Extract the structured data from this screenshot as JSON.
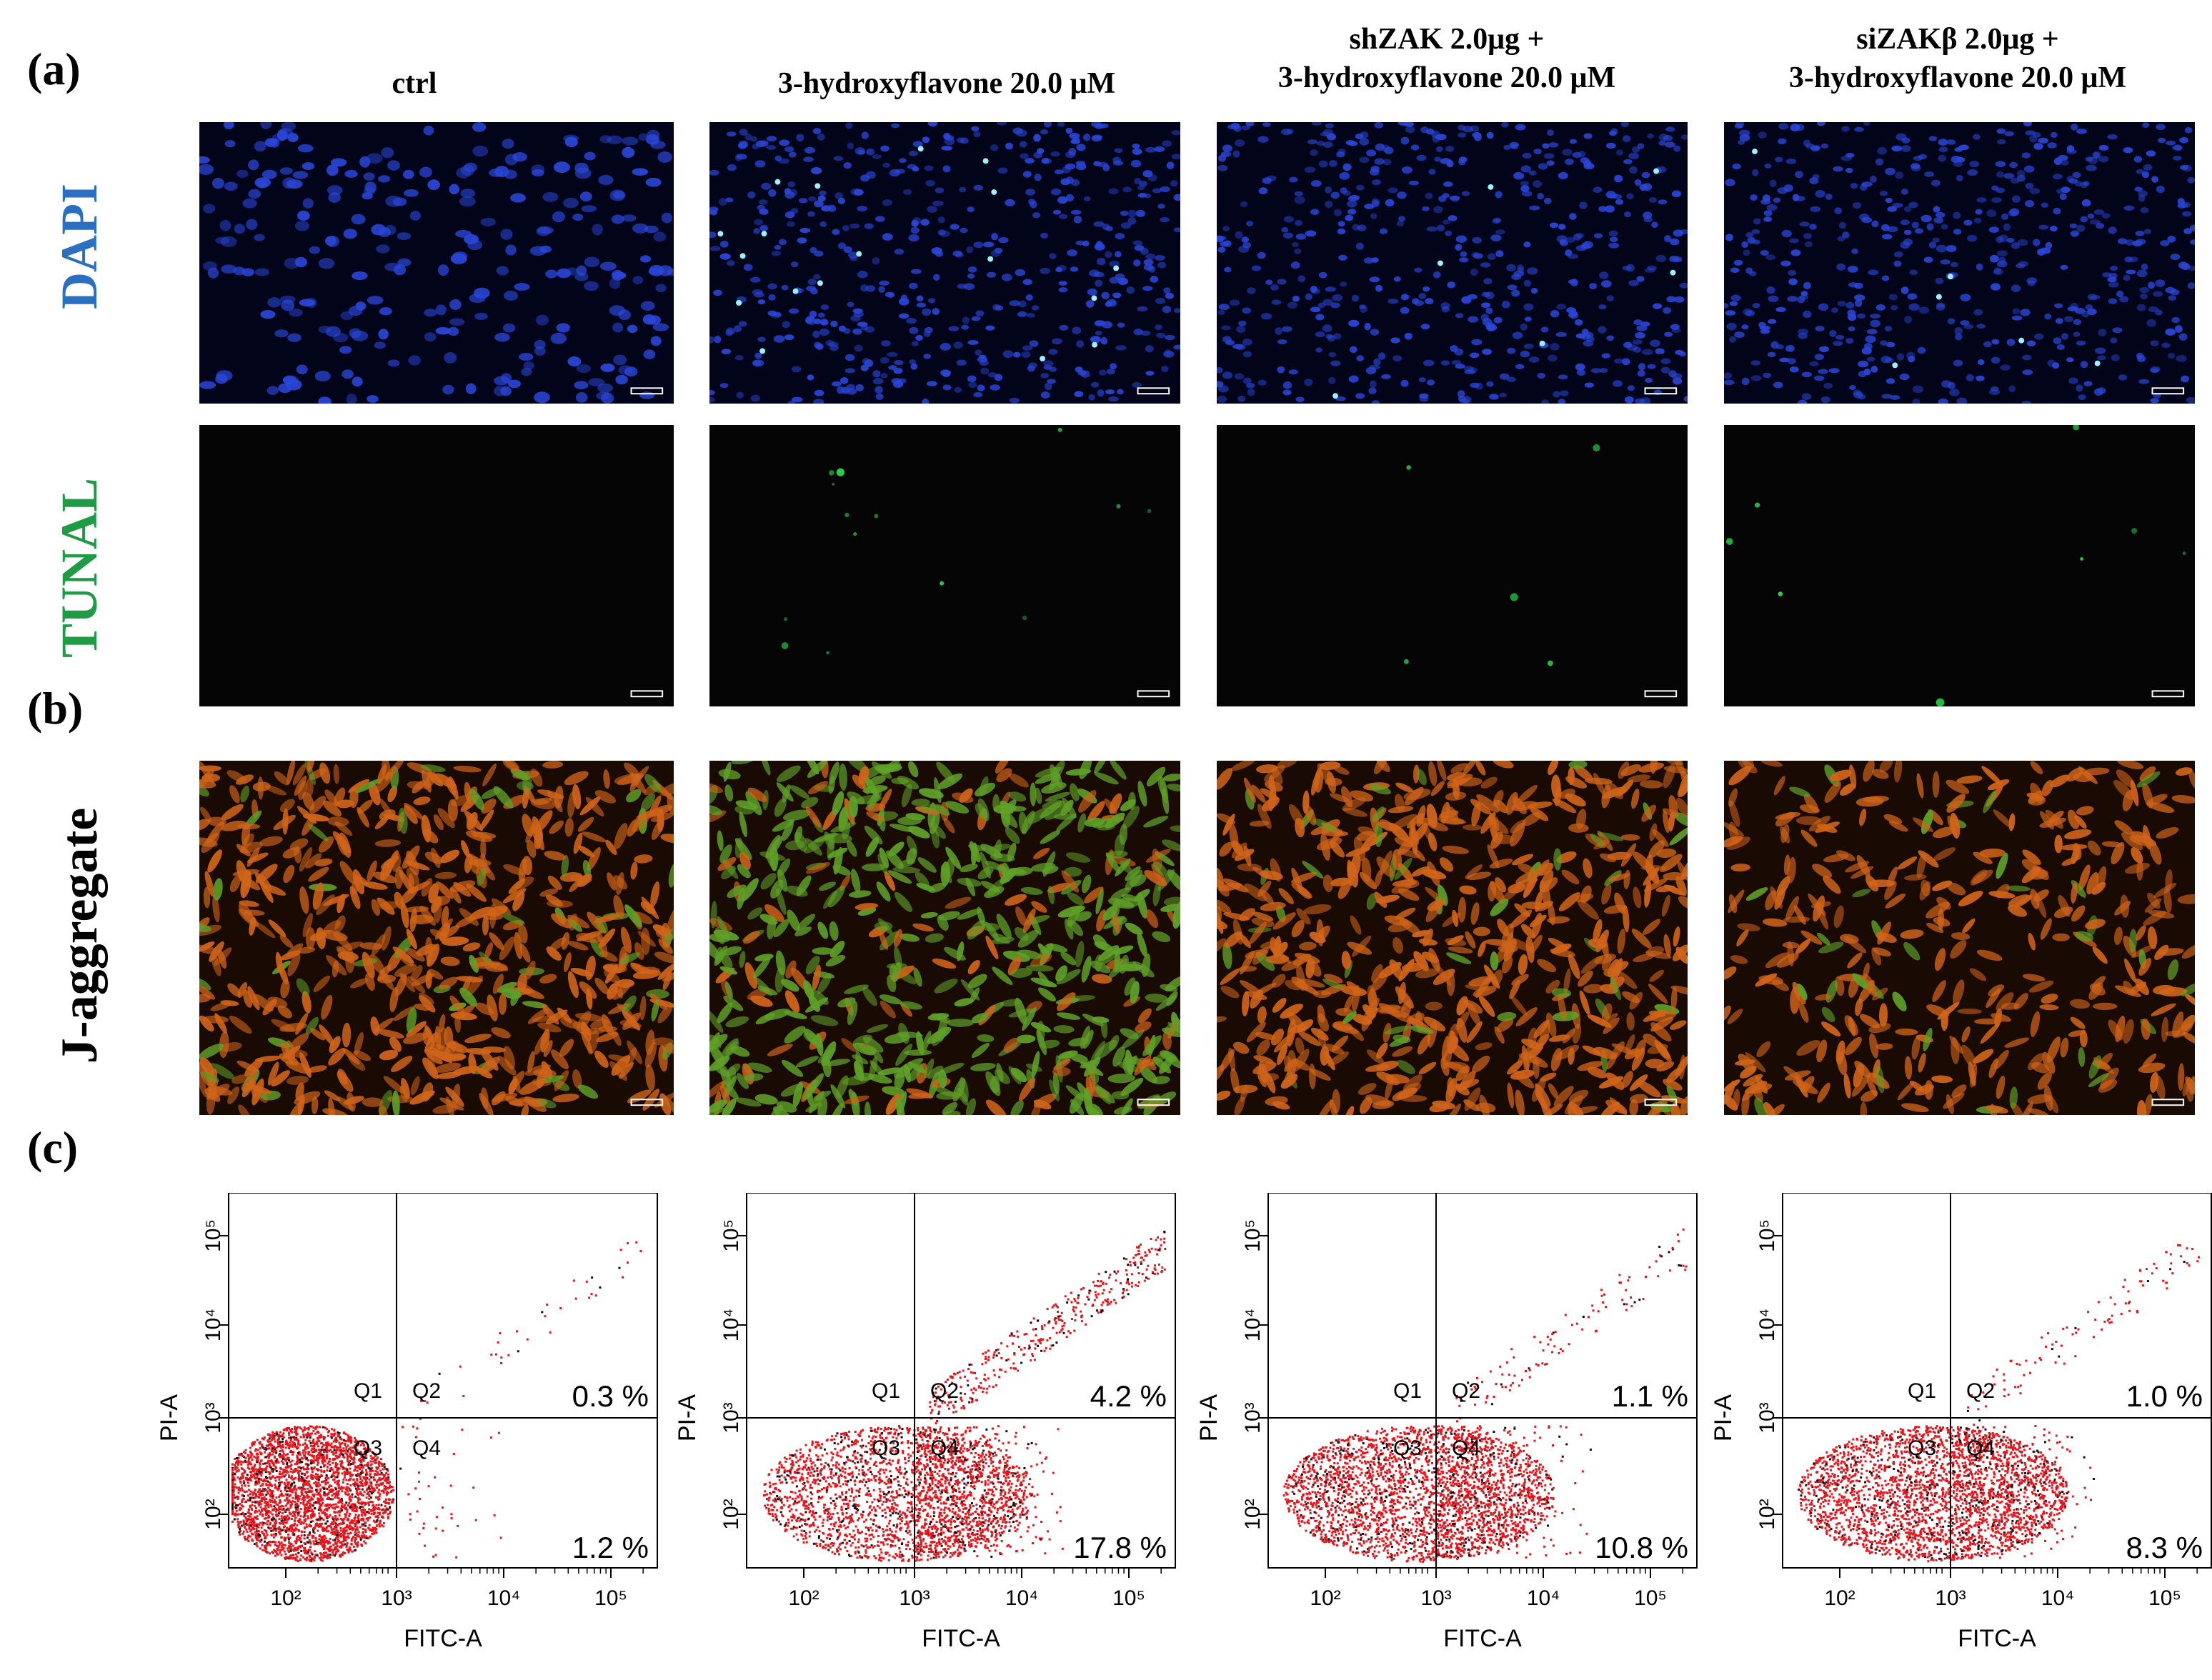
{
  "panel_labels": {
    "a": "(a)",
    "b": "(b)",
    "c": "(c)"
  },
  "column_titles": [
    "ctrl",
    "3-hydroxyflavone 20.0 μM",
    "shZAK 2.0μg +\n3-hydroxyflavone 20.0 μM",
    "siZAKβ 2.0μg +\n3-hydroxyflavone 20.0 μM"
  ],
  "row_labels": {
    "dapi": "DAPI",
    "tunal": "TUNAL",
    "jagg": "J-aggregate"
  },
  "colors": {
    "dapi_label": "#2a6fc0",
    "tunal_label": "#1f9a45",
    "dapi_bg": "#02051a",
    "dapi_nucleus": "#2a46d8",
    "tunal_bg": "#050505",
    "tunal_dot": "#2bd44a",
    "jagg_bg": "#1a0a04",
    "jagg_orange": "#d0641a",
    "jagg_green": "#5fa028",
    "flow_red": "#e8141c",
    "flow_black": "#111111"
  },
  "flow": {
    "x_axis_label": "FITC-A",
    "y_axis_label": "PI-A",
    "x_ticks": [
      "10²",
      "10³",
      "10⁴",
      "10⁵"
    ],
    "y_ticks": [
      "10²",
      "10³",
      "10⁴",
      "10⁵"
    ],
    "quadrants": [
      "Q1",
      "Q2",
      "Q3",
      "Q4"
    ],
    "plots": [
      {
        "upper_right": "0.3 %",
        "lower_right": "1.2 %",
        "upper_right_pct": 0.3,
        "lower_right_pct": 1.2
      },
      {
        "upper_right": "4.2 %",
        "lower_right": "17.8 %",
        "upper_right_pct": 4.2,
        "lower_right_pct": 17.8
      },
      {
        "upper_right": "1.1 %",
        "lower_right": "10.8 %",
        "upper_right_pct": 1.1,
        "lower_right_pct": 10.8
      },
      {
        "upper_right": "1.0 %",
        "lower_right": "8.3 %",
        "upper_right_pct": 1.0,
        "lower_right_pct": 8.3
      }
    ]
  }
}
